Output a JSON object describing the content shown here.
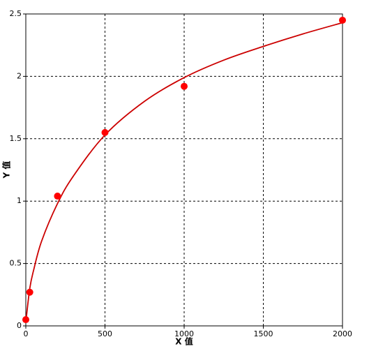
{
  "chart_data": {
    "type": "scatter",
    "xlabel": "X 值",
    "ylabel": "Y 值",
    "xlim": [
      0,
      2000
    ],
    "xticks": [
      0,
      500,
      1000,
      1500,
      2000
    ],
    "ylim": [
      0,
      2.5
    ],
    "yticks": [
      0,
      0.5,
      1,
      1.5,
      2,
      2.5
    ],
    "grid": true,
    "series": [
      {
        "mode": "line",
        "color": "#cc0000",
        "x": [
          0,
          25,
          50,
          100,
          200,
          300,
          500,
          750,
          1000,
          1250,
          1500,
          1750,
          2000
        ],
        "values": [
          0.03,
          0.3,
          0.45,
          0.68,
          0.98,
          1.2,
          1.53,
          1.8,
          1.99,
          2.13,
          2.24,
          2.34,
          2.43
        ]
      },
      {
        "mode": "markers",
        "color": "#ff0000",
        "x": [
          0,
          25,
          200,
          500,
          1000,
          2000
        ],
        "values": [
          0.05,
          0.27,
          1.04,
          1.55,
          1.92,
          2.45
        ]
      }
    ]
  }
}
